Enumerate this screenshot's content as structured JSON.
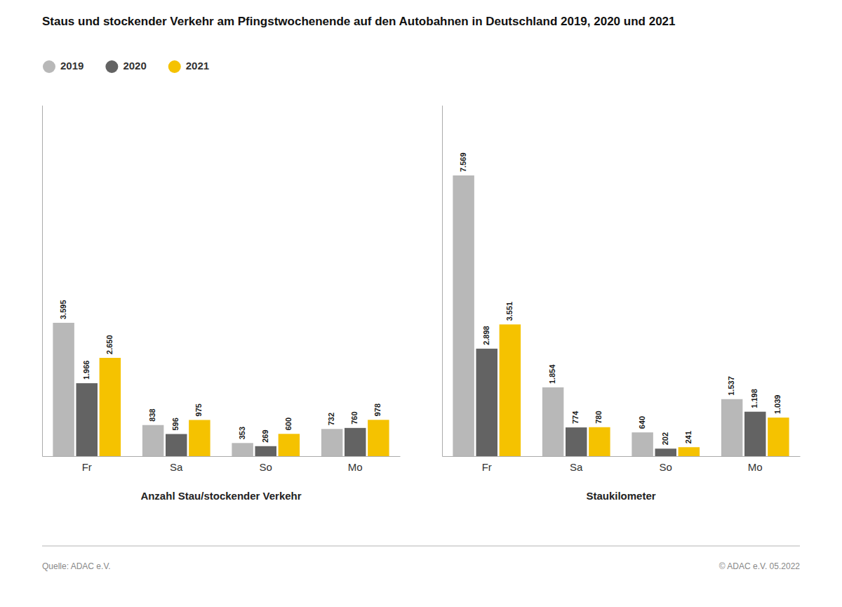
{
  "chart_data": [
    {
      "type": "bar",
      "title": "Staus und stockender Verkehr am Pfingstwochenende auf den Autobahnen in Deutschland 2019, 2020 und 2021",
      "x_label": "Anzahl Stau/stockender Verkehr",
      "categories": [
        "Fr",
        "Sa",
        "So",
        "Mo"
      ],
      "series": [
        {
          "name": "2019",
          "color": "#b8b8b8",
          "values": [
            3595,
            838,
            353,
            732
          ],
          "value_labels": [
            "3.595",
            "838",
            "353",
            "732"
          ]
        },
        {
          "name": "2020",
          "color": "#636363",
          "values": [
            1966,
            596,
            269,
            760
          ],
          "value_labels": [
            "1.966",
            "596",
            "269",
            "760"
          ]
        },
        {
          "name": "2021",
          "color": "#f5c200",
          "values": [
            2650,
            975,
            600,
            978
          ],
          "value_labels": [
            "2.650",
            "975",
            "600",
            "978"
          ]
        }
      ],
      "ylim": [
        0,
        9461.25
      ],
      "data_labels": true,
      "tick_labels": "x",
      "grid": false,
      "legend": "upper left",
      "annotations": [
        "Quelle: ADAC e.V.",
        "© ADAC e.V. 05.2022"
      ]
    },
    {
      "type": "bar",
      "x_label": "Staukilometer",
      "categories": [
        "Fr",
        "Sa",
        "So",
        "Mo"
      ],
      "series": [
        {
          "name": "2019",
          "color": "#b8b8b8",
          "values": [
            7569,
            1854,
            640,
            1537
          ],
          "value_labels": [
            "7.569",
            "1.854",
            "640",
            "1.537"
          ]
        },
        {
          "name": "2020",
          "color": "#636363",
          "values": [
            2898,
            774,
            202,
            1198
          ],
          "value_labels": [
            "2.898",
            "774",
            "202",
            "1.198"
          ]
        },
        {
          "name": "2021",
          "color": "#f5c200",
          "values": [
            3551,
            780,
            241,
            1039
          ],
          "value_labels": [
            "3.551",
            "780",
            "241",
            "1.039"
          ]
        }
      ],
      "ylim": [
        0,
        9461.25
      ],
      "data_labels": true,
      "tick_labels": "x",
      "grid": false
    }
  ]
}
